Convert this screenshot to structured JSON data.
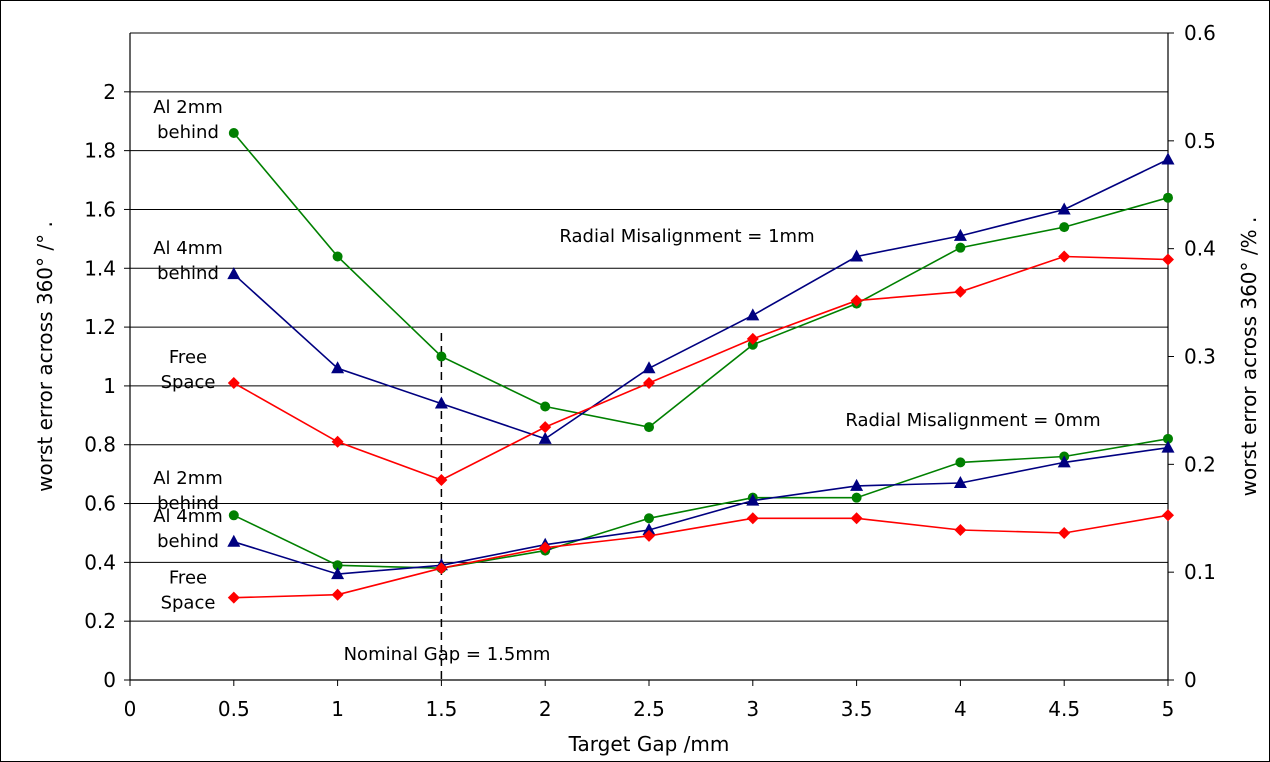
{
  "chart_data": {
    "type": "line",
    "xlabel": "Target Gap /mm",
    "ylabel": "worst error across 360° /° .",
    "y2label": "worst error across 360° /% .",
    "xlim": [
      0,
      5
    ],
    "ylim": [
      0,
      2.2
    ],
    "y2lim": [
      0,
      0.6
    ],
    "x_ticks": [
      "0",
      "0.5",
      "1",
      "1.5",
      "2",
      "2.5",
      "3",
      "3.5",
      "4",
      "4.5",
      "5"
    ],
    "y_ticks": [
      "0",
      "0.2",
      "0.4",
      "0.6",
      "0.8",
      "1",
      "1.2",
      "1.4",
      "1.6",
      "1.8",
      "2"
    ],
    "y2_ticks": [
      "0",
      "0.1",
      "0.2",
      "0.3",
      "0.4",
      "0.5",
      "0.6"
    ],
    "grid": "horizontal",
    "x": [
      0.5,
      1,
      1.5,
      2,
      2.5,
      3,
      3.5,
      4,
      4.5,
      5
    ],
    "series": [
      {
        "group": "Radial Misalignment = 1mm",
        "marker": "circle",
        "color": "#008000",
        "values": [
          1.86,
          1.44,
          1.1,
          0.93,
          0.86,
          1.14,
          1.28,
          1.47,
          1.54,
          1.64
        ]
      },
      {
        "group": "Radial Misalignment = 1mm",
        "marker": "triangle",
        "color": "#000080",
        "values": [
          1.38,
          1.06,
          0.94,
          0.82,
          1.06,
          1.24,
          1.44,
          1.51,
          1.6,
          1.77
        ]
      },
      {
        "group": "Radial Misalignment = 1mm",
        "marker": "diamond",
        "color": "#ff0000",
        "values": [
          1.01,
          0.81,
          0.68,
          0.86,
          1.01,
          1.16,
          1.29,
          1.32,
          1.44,
          1.43
        ]
      },
      {
        "group": "Radial Misalignment = 0mm",
        "marker": "circle",
        "color": "#008000",
        "values": [
          0.56,
          0.39,
          0.38,
          0.44,
          0.55,
          0.62,
          0.62,
          0.74,
          0.76,
          0.82
        ]
      },
      {
        "group": "Radial Misalignment = 0mm",
        "marker": "triangle",
        "color": "#000080",
        "values": [
          0.47,
          0.36,
          0.39,
          0.46,
          0.51,
          0.61,
          0.66,
          0.67,
          0.74,
          0.79
        ]
      },
      {
        "group": "Radial Misalignment = 0mm",
        "marker": "diamond",
        "color": "#ff0000",
        "values": [
          0.28,
          0.29,
          0.38,
          0.45,
          0.49,
          0.55,
          0.55,
          0.51,
          0.5,
          0.56
        ]
      }
    ],
    "annotations": [
      {
        "text": [
          "Al 2mm",
          "behind"
        ],
        "y": 1.86
      },
      {
        "text": [
          "Al 4mm",
          "behind"
        ],
        "y": 1.38
      },
      {
        "text": [
          "Free",
          "Space"
        ],
        "y": 1.01
      },
      {
        "text": [
          "Al 2mm",
          "behind"
        ],
        "y": 0.66
      },
      {
        "text": [
          "Al 4mm",
          "behind"
        ],
        "y": 0.47
      },
      {
        "text": [
          "Free",
          "Space"
        ],
        "y": 0.28
      }
    ],
    "labels": {
      "rm1": "Radial Misalignment = 1mm",
      "rm0": "Radial Misalignment = 0mm",
      "nominal": "Nominal Gap = 1.5mm"
    },
    "nominal_x": 1.5,
    "nominal_top": 1.18
  }
}
